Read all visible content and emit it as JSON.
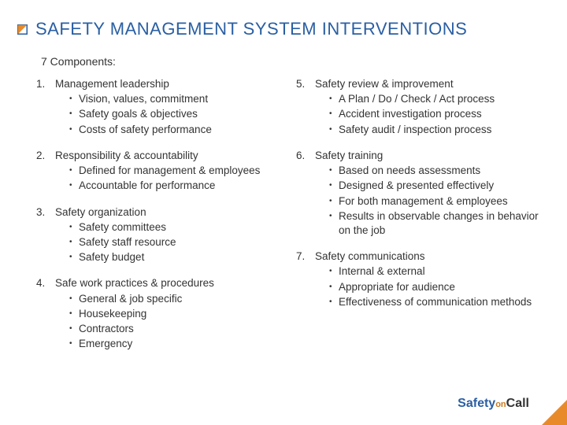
{
  "colors": {
    "title": "#2a5fa3",
    "bullet_fill": "#e98a2a",
    "bullet_stroke": "#2a5fa3",
    "body_text": "#333333",
    "logo_main": "#2a5fa3",
    "logo_on": "#cc7a1f",
    "logo_call": "#333333",
    "corner": "#e98a2a"
  },
  "title": "SAFETY MANAGEMENT SYSTEM INTERVENTIONS",
  "subhead": "7 Components:",
  "left": [
    {
      "num": "1.",
      "title": "Management leadership",
      "items": [
        "Vision, values, commitment",
        "Safety goals & objectives",
        "Costs of safety performance"
      ]
    },
    {
      "num": "2.",
      "title": "Responsibility & accountability",
      "items": [
        "Defined for management & employees",
        "Accountable for performance"
      ]
    },
    {
      "num": "3.",
      "title": "Safety organization",
      "items": [
        "Safety committees",
        "Safety staff resource",
        "Safety budget"
      ]
    },
    {
      "num": "4.",
      "title": "Safe work practices & procedures",
      "items": [
        "General & job specific",
        "Housekeeping",
        "Contractors",
        "Emergency"
      ]
    }
  ],
  "right": [
    {
      "num": "5.",
      "title": "Safety review & improvement",
      "items": [
        "A Plan / Do / Check / Act process",
        "Accident investigation process",
        "Safety audit / inspection process"
      ]
    },
    {
      "num": "6.",
      "title": "Safety training",
      "items": [
        "Based on needs assessments",
        "Designed & presented effectively",
        "For both management & employees",
        "Results in observable changes in behavior on the job"
      ]
    },
    {
      "num": "7.",
      "title": "Safety communications",
      "items": [
        "Internal & external",
        "Appropriate for audience",
        "Effectiveness of communication methods"
      ]
    }
  ],
  "logo": {
    "safety": "Safety",
    "on": "on",
    "call": "Call"
  }
}
